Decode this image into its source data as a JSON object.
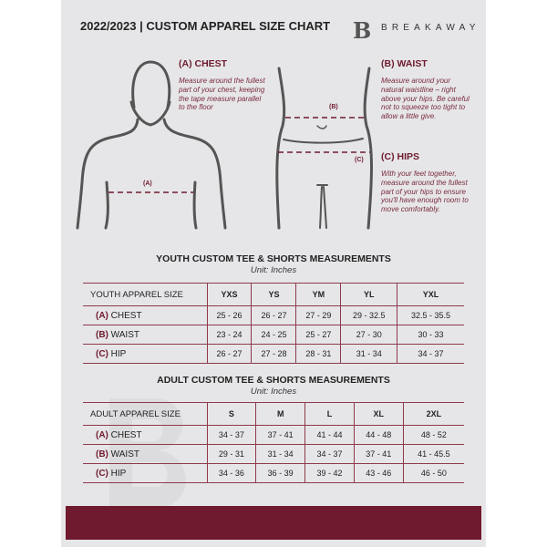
{
  "header": {
    "title": "2022/2023  |  CUSTOM APPAREL SIZE CHART",
    "brand": "BREAKAWAY",
    "logo_letter": "B"
  },
  "guide": {
    "chest": {
      "title": "(A) CHEST",
      "text": "Measure around the fullest part of your chest, keeping the tape measure parallel to the floor",
      "marker": "(A)"
    },
    "waist": {
      "title": "(B) WAIST",
      "text": "Measure around your natural waistline – right above your hips. Be careful not to squeeze too tight to allow a little give.",
      "marker": "(B)"
    },
    "hips": {
      "title": "(C) HIPS",
      "text": "With your feet together, measure around the fullest part of your hips to ensure you'll have enough room to move comfortably.",
      "marker": "(C)"
    }
  },
  "accent": "#6f1a2e",
  "youth": {
    "title": "YOUTH CUSTOM TEE & SHORTS MEASUREMENTS",
    "unit": "Unit: Inches",
    "header": [
      "YOUTH APPAREL SIZE",
      "YXS",
      "YS",
      "YM",
      "YL",
      "YXL"
    ],
    "rows": [
      {
        "code": "(A)",
        "name": "CHEST",
        "values": [
          "25 - 26",
          "26 - 27",
          "27 - 29",
          "29 - 32.5",
          "32.5 - 35.5"
        ]
      },
      {
        "code": "(B)",
        "name": "WAIST",
        "values": [
          "23 - 24",
          "24 - 25",
          "25 - 27",
          "27 - 30",
          "30 - 33"
        ]
      },
      {
        "code": "(C)",
        "name": "HIP",
        "values": [
          "26 - 27",
          "27 - 28",
          "28 - 31",
          "31 - 34",
          "34 - 37"
        ]
      }
    ]
  },
  "adult": {
    "title": "ADULT CUSTOM TEE & SHORTS MEASUREMENTS",
    "unit": "Unit: Inches",
    "header": [
      "ADULT APPAREL SIZE",
      "S",
      "M",
      "L",
      "XL",
      "2XL"
    ],
    "rows": [
      {
        "code": "(A)",
        "name": "CHEST",
        "values": [
          "34 - 37",
          "37 - 41",
          "41 - 44",
          "44 - 48",
          "48 - 52"
        ]
      },
      {
        "code": "(B)",
        "name": "WAIST",
        "values": [
          "29 - 31",
          "31 - 34",
          "34 - 37",
          "37 - 41",
          "41 - 45.5"
        ]
      },
      {
        "code": "(C)",
        "name": "HIP",
        "values": [
          "34 - 36",
          "36 - 39",
          "39 - 42",
          "43 - 46",
          "46 - 50"
        ]
      }
    ]
  }
}
